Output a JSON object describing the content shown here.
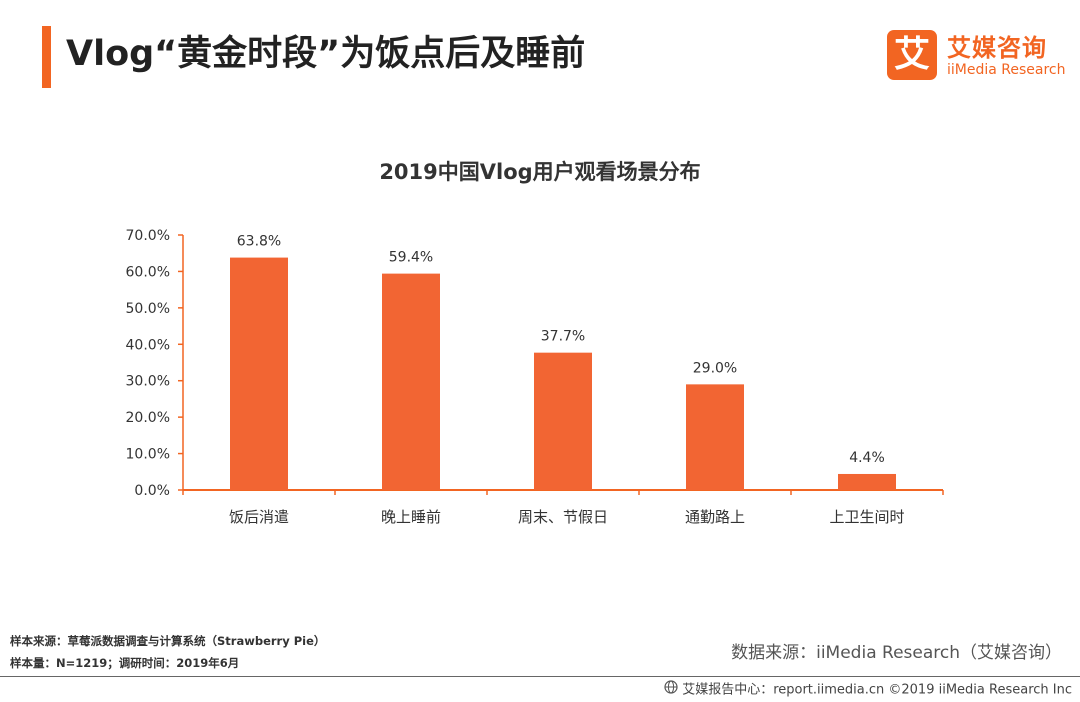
{
  "header": {
    "title": "Vlog“黄金时段”为饭点后及睡前",
    "logo": {
      "mark": "艾",
      "name_cn": "艾媒咨询",
      "name_en": "iiMedia Research"
    }
  },
  "colors": {
    "accent": "#f26522",
    "bar": "#f26533",
    "axis": "#f26522",
    "text": "#333333"
  },
  "chart_data": {
    "type": "bar",
    "title": "2019中国Vlog用户观看场景分布",
    "categories": [
      "饭后消遣",
      "晚上睡前",
      "周末、节假日",
      "通勤路上",
      "上卫生间时"
    ],
    "values": [
      63.8,
      59.4,
      37.7,
      29.0,
      4.4
    ],
    "value_labels": [
      "63.8%",
      "59.4%",
      "37.7%",
      "29.0%",
      "4.4%"
    ],
    "yticks": [
      0,
      10,
      20,
      30,
      40,
      50,
      60,
      70
    ],
    "ytick_labels": [
      "0.0%",
      "10.0%",
      "20.0%",
      "30.0%",
      "40.0%",
      "50.0%",
      "60.0%",
      "70.0%"
    ],
    "ylim": [
      0,
      70
    ],
    "xlabel": "",
    "ylabel": "",
    "grid": false,
    "legend": "none"
  },
  "footer": {
    "sample_source": "样本来源：草莓派数据调查与计算系统（Strawberry Pie）",
    "sample_size": "样本量：N=1219；调研时间：2019年6月",
    "data_source": "数据来源：iiMedia Research（艾媒咨询）",
    "report_center": "艾媒报告中心：report.iimedia.cn ©2019 iiMedia Research Inc"
  }
}
